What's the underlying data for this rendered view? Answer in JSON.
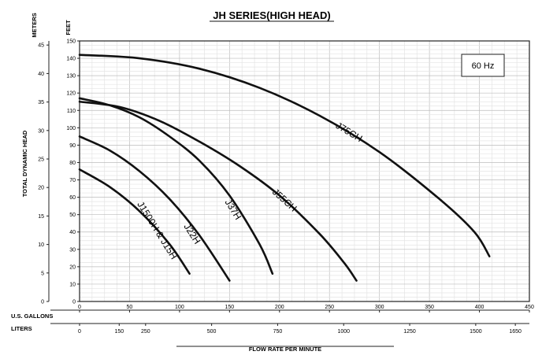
{
  "chart_data": {
    "type": "line",
    "title": "JH SERIES(HIGH HEAD)",
    "frequency_note": "60 Hz",
    "ylabel": "TOTAL DYNAMIC HEAD",
    "y_left_unit": "METERS",
    "y_right_unit": "FEET",
    "x_primary_label": "U.S. GALLONS",
    "x_secondary_label": "LITERS",
    "xlabel": "FLOW RATE PER MINUTE",
    "xlim": [
      0,
      450
    ],
    "ylim": [
      0,
      150
    ],
    "meters_ticks": [
      "0",
      "5",
      "10",
      "15",
      "20",
      "25",
      "30",
      "35",
      "40",
      "45"
    ],
    "feet_ticks": [
      "0",
      "10",
      "20",
      "30",
      "40",
      "50",
      "60",
      "70",
      "80",
      "90",
      "100",
      "110",
      "120",
      "130",
      "140",
      "150"
    ],
    "gallon_ticks": [
      "0",
      "50",
      "100",
      "150",
      "200",
      "250",
      "300",
      "350",
      "400",
      "450"
    ],
    "liter_ticks": [
      "0",
      "150",
      "250",
      "500",
      "750",
      "1000",
      "1250",
      "1500",
      "1650"
    ],
    "grid": true,
    "series": [
      {
        "name": "J75CH",
        "x": [
          0,
          60,
          120,
          180,
          240,
          300,
          360,
          395,
          410
        ],
        "y": [
          142,
          140,
          134,
          123,
          107,
          86,
          59,
          40,
          26
        ]
      },
      {
        "name": "J55CH",
        "x": [
          0,
          40,
          80,
          120,
          160,
          200,
          240,
          265,
          277
        ],
        "y": [
          115,
          112,
          104,
          92,
          78,
          61,
          39,
          22,
          12
        ]
      },
      {
        "name": "J37H",
        "x": [
          0,
          30,
          60,
          90,
          120,
          150,
          180,
          193
        ],
        "y": [
          117,
          113,
          106,
          95,
          81,
          61,
          33,
          16
        ]
      },
      {
        "name": "J22H",
        "x": [
          0,
          30,
          60,
          90,
          120,
          150
        ],
        "y": [
          95,
          87,
          75,
          59,
          38,
          12
        ]
      },
      {
        "name": "J1500H & J15H",
        "x": [
          0,
          30,
          60,
          90,
          110
        ],
        "y": [
          76,
          66,
          52,
          33,
          16
        ]
      }
    ]
  }
}
